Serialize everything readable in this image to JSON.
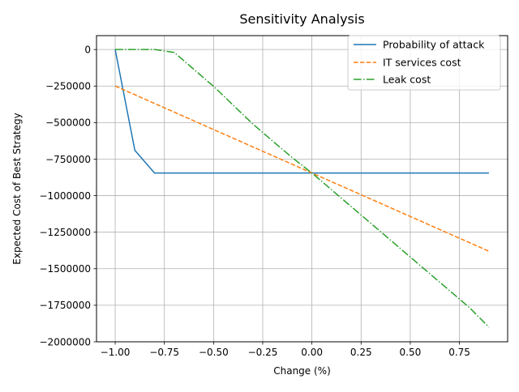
{
  "chart_data": {
    "type": "line",
    "title": "Sensitivity Analysis",
    "xlabel": "Change (%)",
    "ylabel": "Expected Cost of Best Strategy",
    "xlim": [
      -1.095,
      0.995
    ],
    "ylim": [
      -2000000,
      95000
    ],
    "x_ticks": [
      -1.0,
      -0.75,
      -0.5,
      -0.25,
      0.0,
      0.25,
      0.5,
      0.75
    ],
    "x_tick_labels": [
      "−1.00",
      "−0.75",
      "−0.50",
      "−0.25",
      "0.00",
      "0.25",
      "0.50",
      "0.75"
    ],
    "y_ticks": [
      0,
      -250000,
      -500000,
      -750000,
      -1000000,
      -1250000,
      -1500000,
      -1750000,
      -2000000
    ],
    "y_tick_labels": [
      "0",
      "−250000",
      "−500000",
      "−750000",
      "−1000000",
      "−1250000",
      "−1500000",
      "−1750000",
      "−2000000"
    ],
    "grid": true,
    "legend_position": "top-right",
    "series": [
      {
        "name": "Probability of attack",
        "color": "#1f77b4",
        "linestyle": "solid",
        "x": [
          -1.0,
          -0.9,
          -0.8,
          -0.7,
          -0.6,
          -0.5,
          -0.4,
          -0.3,
          -0.2,
          -0.1,
          0.0,
          0.1,
          0.2,
          0.3,
          0.4,
          0.5,
          0.6,
          0.7,
          0.8,
          0.9
        ],
        "y": [
          0,
          -690000,
          -845000,
          -845000,
          -845000,
          -845000,
          -845000,
          -845000,
          -845000,
          -845000,
          -845000,
          -845000,
          -845000,
          -845000,
          -845000,
          -845000,
          -845000,
          -845000,
          -845000,
          -845000
        ]
      },
      {
        "name": "IT services cost",
        "color": "#ff7f0e",
        "linestyle": "dashed",
        "x": [
          -1.0,
          -0.9,
          -0.8,
          -0.7,
          -0.6,
          -0.5,
          -0.4,
          -0.3,
          -0.2,
          -0.1,
          0.0,
          0.1,
          0.2,
          0.3,
          0.4,
          0.5,
          0.6,
          0.7,
          0.8,
          0.9
        ],
        "y": [
          -250000,
          -309500,
          -369000,
          -428500,
          -488000,
          -547500,
          -607000,
          -666500,
          -726000,
          -785500,
          -845000,
          -904500,
          -964000,
          -1023500,
          -1083000,
          -1142500,
          -1202000,
          -1261500,
          -1321000,
          -1380500
        ]
      },
      {
        "name": "Leak cost",
        "color": "#2ca02c",
        "linestyle": "dashdot",
        "x": [
          -1.0,
          -0.9,
          -0.8,
          -0.7,
          -0.6,
          -0.5,
          -0.4,
          -0.3,
          -0.2,
          -0.1,
          0.0,
          0.1,
          0.2,
          0.3,
          0.4,
          0.5,
          0.6,
          0.7,
          0.8,
          0.9
        ],
        "y": [
          0,
          0,
          0,
          -20000,
          -136000,
          -252000,
          -381000,
          -510000,
          -626000,
          -740000,
          -845000,
          -960000,
          -1075000,
          -1190000,
          -1305000,
          -1420000,
          -1535000,
          -1650000,
          -1765000,
          -1900000
        ]
      }
    ]
  }
}
